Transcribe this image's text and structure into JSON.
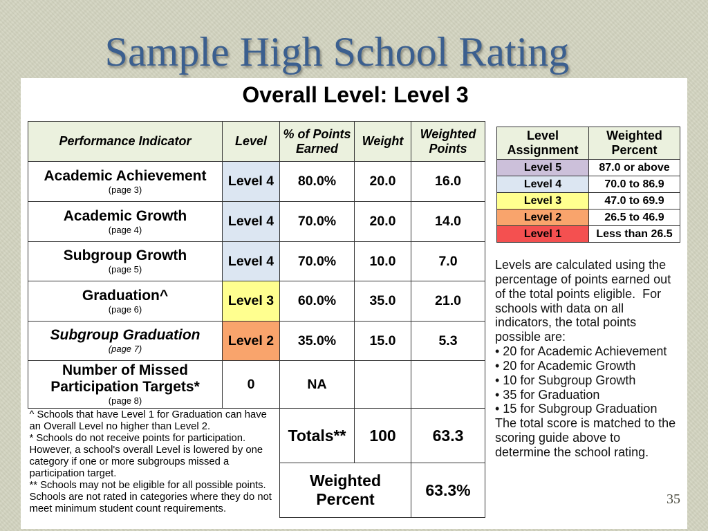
{
  "slide": {
    "title": "Sample High School Rating",
    "page_number": "35"
  },
  "overall_level": "Overall Level: Level 3",
  "performance_table": {
    "headers": {
      "indicator": "Performance Indicator",
      "level": "Level",
      "percent": "% of Points Earned",
      "weight": "Weight",
      "weighted_points": "Weighted Points"
    },
    "rows": [
      {
        "indicator": "Academic Achievement",
        "page": "(page 3)",
        "level": "Level 4",
        "level_color": "#dce6f2",
        "percent": "80.0%",
        "weight": "20.0",
        "weighted_points": "16.0"
      },
      {
        "indicator": "Academic Growth",
        "page": "(page 4)",
        "level": "Level 4",
        "level_color": "#dce6f2",
        "percent": "70.0%",
        "weight": "20.0",
        "weighted_points": "14.0"
      },
      {
        "indicator": "Subgroup Growth",
        "page": "(page 5)",
        "level": "Level 4",
        "level_color": "#dce6f2",
        "percent": "70.0%",
        "weight": "10.0",
        "weighted_points": "7.0"
      },
      {
        "indicator": "Graduation^",
        "page": "(page 6)",
        "level": "Level 3",
        "level_color": "#ffff8f",
        "percent": "60.0%",
        "weight": "35.0",
        "weighted_points": "21.0"
      },
      {
        "indicator": "Subgroup Graduation",
        "page": "(page 7)",
        "level": "Level 2",
        "level_color": "#f9a46c",
        "percent": "35.0%",
        "weight": "15.0",
        "weighted_points": "5.3"
      },
      {
        "indicator": "Number of Missed Participation Targets*",
        "page": "(page 8)",
        "level": "0",
        "percent": "NA"
      }
    ],
    "footnotes": [
      "^ Schools that have Level 1 for Graduation can have an Overall Level no higher than Level 2.",
      "* Schools do not receive points for participation. However, a school's overall Level is lowered by one category if one or more subgroups missed a participation target.",
      "** Schools may not be eligible for all possible points. Schools are not rated in categories where they do not meet minimum student count requirements."
    ],
    "totals": {
      "label": "Totals**",
      "weight": "100",
      "weighted_points": "63.3"
    },
    "weighted_percent": {
      "label": "Weighted Percent",
      "value": "63.3%"
    }
  },
  "level_assignment": {
    "headers": {
      "level": "Level Assignment",
      "percent": "Weighted Percent"
    },
    "rows": [
      {
        "level": "Level 5",
        "range": "87.0 or above",
        "color": "#ccc0da"
      },
      {
        "level": "Level 4",
        "range": "70.0 to 86.9",
        "color": "#dce6f2"
      },
      {
        "level": "Level 3",
        "range": "47.0 to 69.9",
        "color": "#ffff8f"
      },
      {
        "level": "Level 2",
        "range": "26.5 to 46.9",
        "color": "#f9a46c"
      },
      {
        "level": "Level 1",
        "range": "Less than 26.5",
        "color": "#f45050"
      }
    ]
  },
  "explanation": {
    "intro": "Levels are calculated using the percentage of points earned out of the total points eligible.  For schools with data on all indicators, the total points possible are:",
    "bullets": [
      "• 20 for Academic Achievement",
      "• 20 for Academic Growth",
      "• 10 for Subgroup Growth",
      "• 35 for Graduation",
      "• 15 for Subgroup Graduation"
    ],
    "closing": "The total score is matched to the scoring guide above to determine the school rating."
  },
  "colors": {
    "title": "#3b5f8f",
    "table_header": "#ebf1de"
  }
}
